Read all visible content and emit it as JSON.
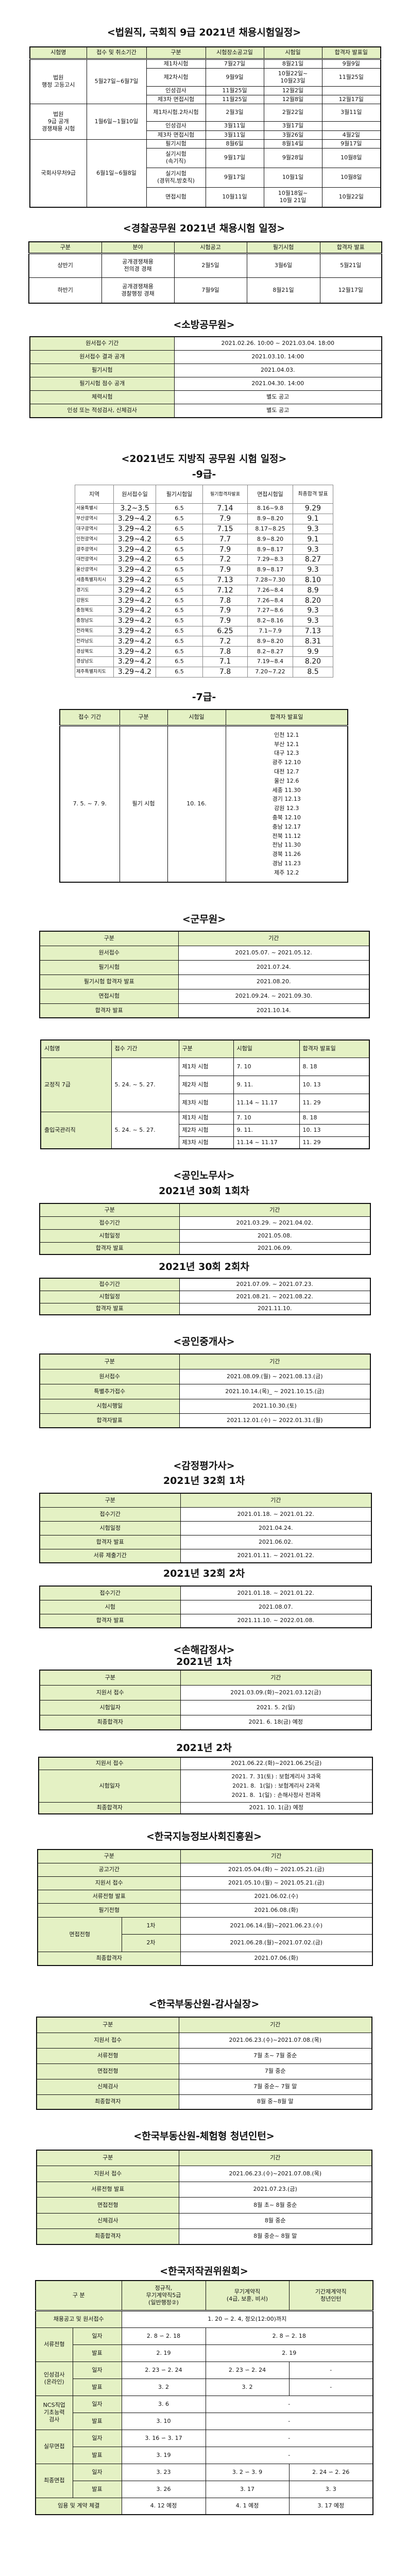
{
  "court": {
    "title": "<법원직, 국회직 9급 2021년 채용시험일정>",
    "headers": [
      "시험명",
      "접수 및 취소기간",
      "구분",
      "시험장소공고일",
      "시험일",
      "합격자 발표일"
    ],
    "groups": [
      {
        "name": "법원\n행정 고등고시",
        "period": "5월27일~6월7일",
        "rows": [
          [
            "제1차시험",
            "7월27일",
            "8월21일",
            "9월9일"
          ],
          [
            "제2차시험",
            "9월9일",
            "10월22일~\n10월23일",
            "11월25일"
          ],
          [
            "인성검사",
            "11월25일",
            "12월2일",
            ""
          ],
          [
            "제3차 면접시험",
            "11월25일",
            "12월8일",
            "12월17일"
          ]
        ]
      },
      {
        "name": "법원\n9급 공개\n경쟁채용 시험",
        "period": "1월6일~1월10일",
        "rows": [
          [
            "제1차시험.2차시험",
            "2월3일",
            "2월22일",
            "3월11일"
          ],
          [
            "인성검사",
            "3월11일",
            "3월17일",
            ""
          ],
          [
            "제3차 면접시험",
            "3월11일",
            "3월26일",
            "4월2일"
          ]
        ]
      },
      {
        "name": "국회사무처9급",
        "period": "6월1일~6월8일",
        "rows": [
          [
            "필기시험",
            "8월6일",
            "8월14일",
            "9월17일"
          ],
          [
            "실기시험\n(속기직)",
            "9월17일",
            "9월28일",
            "10월8일"
          ],
          [
            "실기시험\n(경위직,방호직)",
            "9월17일",
            "10월1일",
            "10월8일"
          ],
          [
            "면접시험",
            "10월11일",
            "10월18일~\n10월 21일",
            "10월22일"
          ]
        ]
      }
    ]
  },
  "police": {
    "title": "<경찰공무원 2021년 채용시험 일정>",
    "headers": [
      "구분",
      "분야",
      "시험공고",
      "필기시험",
      "합격자 발표"
    ],
    "rows": [
      [
        "상반기",
        "공개경쟁채용\n전의경 경채",
        "2월5일",
        "3월6일",
        "5월21일"
      ],
      [
        "하반기",
        "공개경쟁채용\n경찰행정 경채",
        "7월9일",
        "8월21일",
        "12월17일"
      ]
    ]
  },
  "fire": {
    "title": "<소방공무원>",
    "rows": [
      [
        "원서접수 기간",
        "2021.02.26. 10:00 ~ 2021.03.04. 18:00"
      ],
      [
        "원서접수 결과 공개",
        "2021.03.10. 14:00"
      ],
      [
        "필기시험",
        "2021.04.03."
      ],
      [
        "필기시험 점수 공개",
        "2021.04.30. 14:00"
      ],
      [
        "체력시험",
        "별도 공고"
      ],
      [
        "인성 또는 적성검사, 신체검사",
        "별도 공고"
      ]
    ]
  },
  "local": {
    "title": "<2021년도 지방직 공무원 시험 일정>",
    "grade9": {
      "label": "-9급-",
      "headers": [
        "지역",
        "원서접수일",
        "필기시험일",
        "필기합격자발표",
        "면접시험일",
        "최종합격 발표"
      ],
      "rows": [
        [
          "서울특별시",
          "3.2~3.5",
          "6.5",
          "7.14",
          "8.16~9.8",
          "9.29"
        ],
        [
          "부산광역시",
          "3.29~4.2",
          "6.5",
          "7.9",
          "8.9~8.20",
          "9.1"
        ],
        [
          "대구광역시",
          "3.29~4.2",
          "6.5",
          "7.15",
          "8.17~8.25",
          "9.3"
        ],
        [
          "인천광역시",
          "3.29~4.2",
          "6.5",
          "7.7",
          "8.9~8.20",
          "9.1"
        ],
        [
          "광주광역시",
          "3.29~4.2",
          "6.5",
          "7.9",
          "8.9~8.17",
          "9.3"
        ],
        [
          "대전광역시",
          "3.29~4.2",
          "6.5",
          "7.2",
          "7.29~8.3",
          "8.27"
        ],
        [
          "울산광역시",
          "3.29~4.2",
          "6.5",
          "7.9",
          "8.9~8.17",
          "9.3"
        ],
        [
          "세종특별자치시",
          "3.29~4.2",
          "6.5",
          "7.13",
          "7.28~7.30",
          "8.10"
        ],
        [
          "경기도",
          "3.29~4.2",
          "6.5",
          "7.12",
          "7.26~8.4",
          "8.9"
        ],
        [
          "강원도",
          "3.29~4.2",
          "6.5",
          "7.8",
          "7.26~8.4",
          "8.20"
        ],
        [
          "충청북도",
          "3.29~4.2",
          "6.5",
          "7.9",
          "7.27~8.6",
          "9.3"
        ],
        [
          "충청남도",
          "3.29~4.2",
          "6.5",
          "7.9",
          "8.2~8.16",
          "9.3"
        ],
        [
          "전라북도",
          "3.29~4.2",
          "6.5",
          "6.25",
          "7.1~7.9",
          "7.13"
        ],
        [
          "전라남도",
          "3.29~4.2",
          "6.5",
          "7.2",
          "8.9~8.20",
          "8.31"
        ],
        [
          "경상북도",
          "3.29~4.2",
          "6.5",
          "7.8",
          "8.2~8.27",
          "9.9"
        ],
        [
          "경상남도",
          "3.29~4.2",
          "6.5",
          "7.1",
          "7.19~8.4",
          "8.20"
        ],
        [
          "제주특별자치도",
          "3.29~4.2",
          "6.5",
          "7.8",
          "7.20~7.22",
          "8.5"
        ]
      ]
    },
    "grade7": {
      "label": "-7급-",
      "headers": [
        "접수 기간",
        "구분",
        "시험일",
        "합격자 발표일"
      ],
      "period": "7. 5. ~ 7. 9.",
      "type": "필기 시험",
      "date": "10. 16.",
      "results": [
        "인천 12.1",
        "부산 12.1",
        "대구 12.3",
        "광주 12.10",
        "대전 12.7",
        "울산 12.6",
        "세종 11.30",
        "경기 12.13",
        "강원 12.3",
        "충북 12.10",
        "충남 12.17",
        "전북 11.12",
        "전남 11.30",
        "경북 11.26",
        "경남 11.23",
        "제주 12.2"
      ]
    }
  },
  "military": {
    "title": "<군무원>",
    "headers": [
      "구분",
      "기간"
    ],
    "rows": [
      [
        "원서접수",
        "2021.05.07. ~ 2021.05.12."
      ],
      [
        "필기시험",
        "2021.07.24."
      ],
      [
        "필기시험 합격자 발표",
        "2021.08.20."
      ],
      [
        "면접시험",
        "2021.09.24. ~ 2021.09.30."
      ],
      [
        "합격자 발표",
        "2021.10.14."
      ]
    ]
  },
  "corrections": {
    "headers": [
      "시험명",
      "접수 기간",
      "구분",
      "시험일",
      "합격자 발표일"
    ],
    "groups": [
      {
        "name": "교정직 7급",
        "period": "5. 24. ~ 5. 27.",
        "rows": [
          [
            "제1차 시험",
            "7. 10",
            "8. 18"
          ],
          [
            "제2차 시험",
            "9. 11.",
            "10. 13"
          ],
          [
            "제3차 시험",
            "11.14 ~ 11.17",
            "11. 29"
          ]
        ]
      },
      {
        "name": "출입국관리직",
        "period": "5. 24. ~ 5. 27.",
        "rows": [
          [
            "제1차 시험",
            "7. 10",
            "8. 18"
          ],
          [
            "제2차 시험",
            "9. 11.",
            "10. 13"
          ],
          [
            "제3차 시험",
            "11.14 ~ 11.17",
            "11. 29"
          ]
        ]
      }
    ]
  },
  "labor": {
    "title": "<공인노무사>",
    "round1": {
      "subtitle": "2021년 30회 1회차",
      "headers": [
        "구분",
        "기간"
      ],
      "rows": [
        [
          "접수기간",
          "2021.03.29. ~ 2021.04.02."
        ],
        [
          "시험일정",
          "2021.05.08."
        ],
        [
          "합격자 발표",
          "2021.06.09."
        ]
      ]
    },
    "round2": {
      "subtitle": "2021년 30회 2회차",
      "rows": [
        [
          "접수기간",
          "2021.07.09. ~ 2021.07.23."
        ],
        [
          "시험일정",
          "2021.08.21. ~ 2021.08.22."
        ],
        [
          "합격자 발표",
          "2021.11.10."
        ]
      ]
    }
  },
  "broker": {
    "title": "<공인중개사>",
    "headers": [
      "구분",
      "기간"
    ],
    "rows": [
      [
        "원서접수",
        "2021.08.09.(월) ~ 2021.08.13.(금)"
      ],
      [
        "특별추가접수",
        "2021.10.14.(목)_ ~ 2021.10.15.(금)"
      ],
      [
        "시험시행일",
        "2021.10.30.(토)"
      ],
      [
        "합격자발표",
        "2021.12.01.(수) ~ 2022.01.31.(월)"
      ]
    ]
  },
  "appraiser": {
    "title": "<감정평가사>",
    "round1": {
      "subtitle": "2021년 32회 1차",
      "headers": [
        "구분",
        "기간"
      ],
      "rows": [
        [
          "접수기간",
          "2021.01.18. ~ 2021.01.22."
        ],
        [
          "시험일정",
          "2021.04.24."
        ],
        [
          "합격자 발표",
          "2021.06.02."
        ],
        [
          "서류 제출기간",
          "2021.01.11. ~ 2021.01.22."
        ]
      ]
    },
    "round2": {
      "subtitle": "2021년 32회 2차",
      "rows": [
        [
          "접수기간",
          "2021.01.18. ~ 2021.01.22."
        ],
        [
          "시험",
          "2021.08.07."
        ],
        [
          "합격자 발표",
          "2021.11.10. ~ 2022.01.08."
        ]
      ]
    }
  },
  "adjuster": {
    "title": "<손해감정사>",
    "round1": {
      "subtitle": "2021년 1차",
      "headers": [
        "구분",
        "기간"
      ],
      "rows": [
        [
          "지원서 접수",
          "2021.03.09.(화)~2021.03.12(금)"
        ],
        [
          "시험일자",
          "2021. 5. 2(일)"
        ],
        [
          "최종합격자",
          "2021. 6. 18(금) 예정"
        ]
      ]
    },
    "round2": {
      "subtitle": "2021년 2차",
      "rows": [
        [
          "지원서 접수",
          "2021.06.22.(화)~2021.06.25(금)"
        ],
        [
          "시험일자",
          "2021. 7. 31(토) : 보험계리사 3과목\n2021. 8.  1(일) : 보험계리사 2과목\n2021. 8.  1(일) : 손해사정사 전과목"
        ],
        [
          "최종합격자",
          "2021. 10. 1(금) 예정"
        ]
      ]
    }
  },
  "nia": {
    "title": "<한국지능정보사회진흥원>",
    "headers": [
      "구분",
      "기간"
    ],
    "rows": [
      [
        "공고기간",
        "2021.05.04.(화) ~ 2021.05.21.(금)"
      ],
      [
        "지원서 접수",
        "2021.05.10.(월) ~ 2021.05.21.(금)"
      ],
      [
        "서류전형 발표",
        "2021.06.02.(수)"
      ],
      [
        "필기전형",
        "2021.06.08.(화)"
      ]
    ],
    "interview": {
      "label": "면접전형",
      "rounds": [
        [
          "1차",
          "2021.06.14.(월)~2021.06.23.(수)"
        ],
        [
          "2차",
          "2021.06.28.(월)~2021.07.02.(금)"
        ]
      ]
    },
    "final": [
      "최종합격자",
      "2021.07.06.(화)"
    ]
  },
  "reb_audit": {
    "title": "<한국부동산원-감사실장>",
    "headers": [
      "구분",
      "기간"
    ],
    "rows": [
      [
        "지원서 접수",
        "2021.06.23.(수)~2021.07.08.(목)"
      ],
      [
        "서류전형",
        "7월 초~ 7월 중순"
      ],
      [
        "면접전형",
        "7월 중순"
      ],
      [
        "신체검사",
        "7월 중순~ 7월 말"
      ],
      [
        "최종합격자",
        "8월 중~8월 말"
      ]
    ]
  },
  "reb_intern": {
    "title": "<한국부동산원-체험형 청년인턴>",
    "headers": [
      "구분",
      "기간"
    ],
    "rows": [
      [
        "지원서 접수",
        "2021.06.23.(수)~2021.07.08.(목)"
      ],
      [
        "서류전형 발표",
        "2021.07.23.(금)"
      ],
      [
        "면접전형",
        "8월 초~ 8월 중순"
      ],
      [
        "신체검사",
        "8월 중순"
      ],
      [
        "최종합격자",
        "8월 중순~ 8월 말"
      ]
    ]
  },
  "copyright": {
    "title": "<한국저작권위원회>",
    "headers": [
      "구 분",
      "정규직,\n무기계약직5급\n(일반행정②)",
      "무기계약직\n(4급, 보훈, 비서)",
      "기간제계약직\n청년인턴"
    ],
    "notice": [
      "채용공고 및 원서접수",
      "1. 20 ∽ 2. 4, 정오(12:00)까지"
    ],
    "sub_date": "일자",
    "sub_result": "발표",
    "doc": {
      "label": "서류전형",
      "date": [
        "2. 8 ∽ 2. 18",
        "2. 8 ∽ 2. 18"
      ],
      "result": [
        "2. 19",
        "2. 19"
      ]
    },
    "personality": {
      "label": "인성검사\n(온라인)",
      "date": [
        "2. 23 ∽ 2. 24",
        "2. 23 ∽ 2. 24",
        "-"
      ],
      "result": [
        "3. 2",
        "3. 2",
        "-"
      ]
    },
    "ncs": {
      "label": "NCS직업\n기초능력\n검사",
      "date": [
        "3. 6",
        "-"
      ],
      "result": [
        "3. 10",
        "-"
      ]
    },
    "practical": {
      "label": "실무면접",
      "date": [
        "3. 16 ∽ 3. 17",
        "-"
      ],
      "result": [
        "3. 19",
        "-"
      ]
    },
    "final": {
      "label": "최종면접",
      "date": [
        "3. 23",
        "3. 2 ∽ 3. 9",
        "2. 24 ∽ 2. 26"
      ],
      "result": [
        "3. 26",
        "3. 17",
        "3. 3"
      ]
    },
    "hire": [
      "임용 및 계약 체결",
      "4. 12 예정",
      "4. 1 예정",
      "3. 17 예정"
    ]
  },
  "colors": {
    "header_fill": "#e4f1c4",
    "border": "#111111"
  }
}
